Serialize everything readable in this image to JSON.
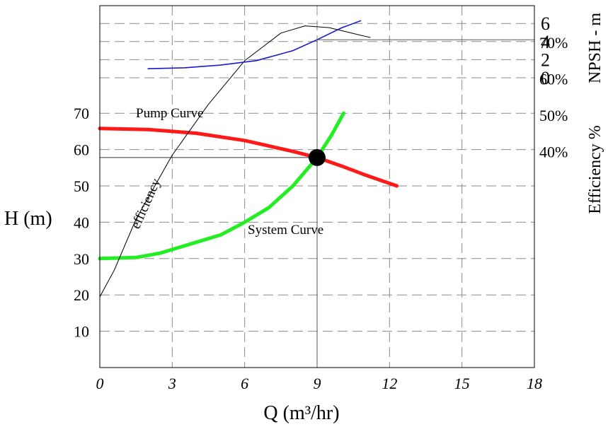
{
  "chart_data": {
    "type": "line",
    "xlabel": "Q (m³/hr)",
    "ylabel": "H (m)",
    "y2label_efficiency": "Efficiency %",
    "y2label_npsh": "NPSH - m",
    "xlim": [
      0,
      18
    ],
    "ylim_head": [
      0,
      80
    ],
    "grid": true,
    "x_ticks": [
      "0",
      "3",
      "6",
      "9",
      "12",
      "15",
      "18"
    ],
    "head_ticks": [
      "10",
      "20",
      "30",
      "40",
      "50",
      "60",
      "70"
    ],
    "efficiency_ticks": [
      "70%",
      "60%",
      "50%",
      "40%"
    ],
    "npsh_ticks": [
      "6",
      "4",
      "2",
      "0"
    ],
    "annotations": {
      "pump_curve": "Pump Curve",
      "system_curve": "System Curve",
      "efficiency": "efficiency"
    },
    "series": [
      {
        "name": "Pump Curve",
        "axis": "head",
        "color": "#ff1a1a",
        "x": [
          0,
          2,
          4,
          6,
          8,
          9,
          10,
          11,
          12.3
        ],
        "y": [
          65.8,
          65.5,
          64.5,
          62.5,
          59.5,
          57.8,
          55.5,
          53,
          50
        ]
      },
      {
        "name": "System Curve",
        "axis": "head",
        "color": "#22ee22",
        "x": [
          0,
          1.5,
          2.5,
          3.5,
          5,
          6,
          7,
          8,
          9,
          9.6,
          10.1
        ],
        "y": [
          30,
          30.3,
          31.5,
          33.5,
          36.5,
          40,
          44,
          50,
          57.8,
          64,
          70
        ]
      },
      {
        "name": "efficiency",
        "axis": "efficiency",
        "color": "#000000",
        "x": [
          0,
          0.6,
          1.5,
          3,
          4.5,
          6,
          7.5,
          8.5,
          9.5,
          10.5,
          11.2
        ],
        "y": [
          0,
          7.4,
          21.4,
          39,
          53,
          65,
          72.6,
          74.6,
          74.1,
          72.5,
          71.4
        ]
      },
      {
        "name": "NPSH",
        "axis": "npsh",
        "color": "#1a1acc",
        "x": [
          2,
          3.5,
          5,
          6.5,
          8,
          9,
          10,
          10.8
        ],
        "y": [
          1,
          1.1,
          1.4,
          1.9,
          3,
          4.2,
          5.5,
          6.3
        ]
      }
    ],
    "operating_point": {
      "x": 9,
      "y": 57.8
    }
  }
}
